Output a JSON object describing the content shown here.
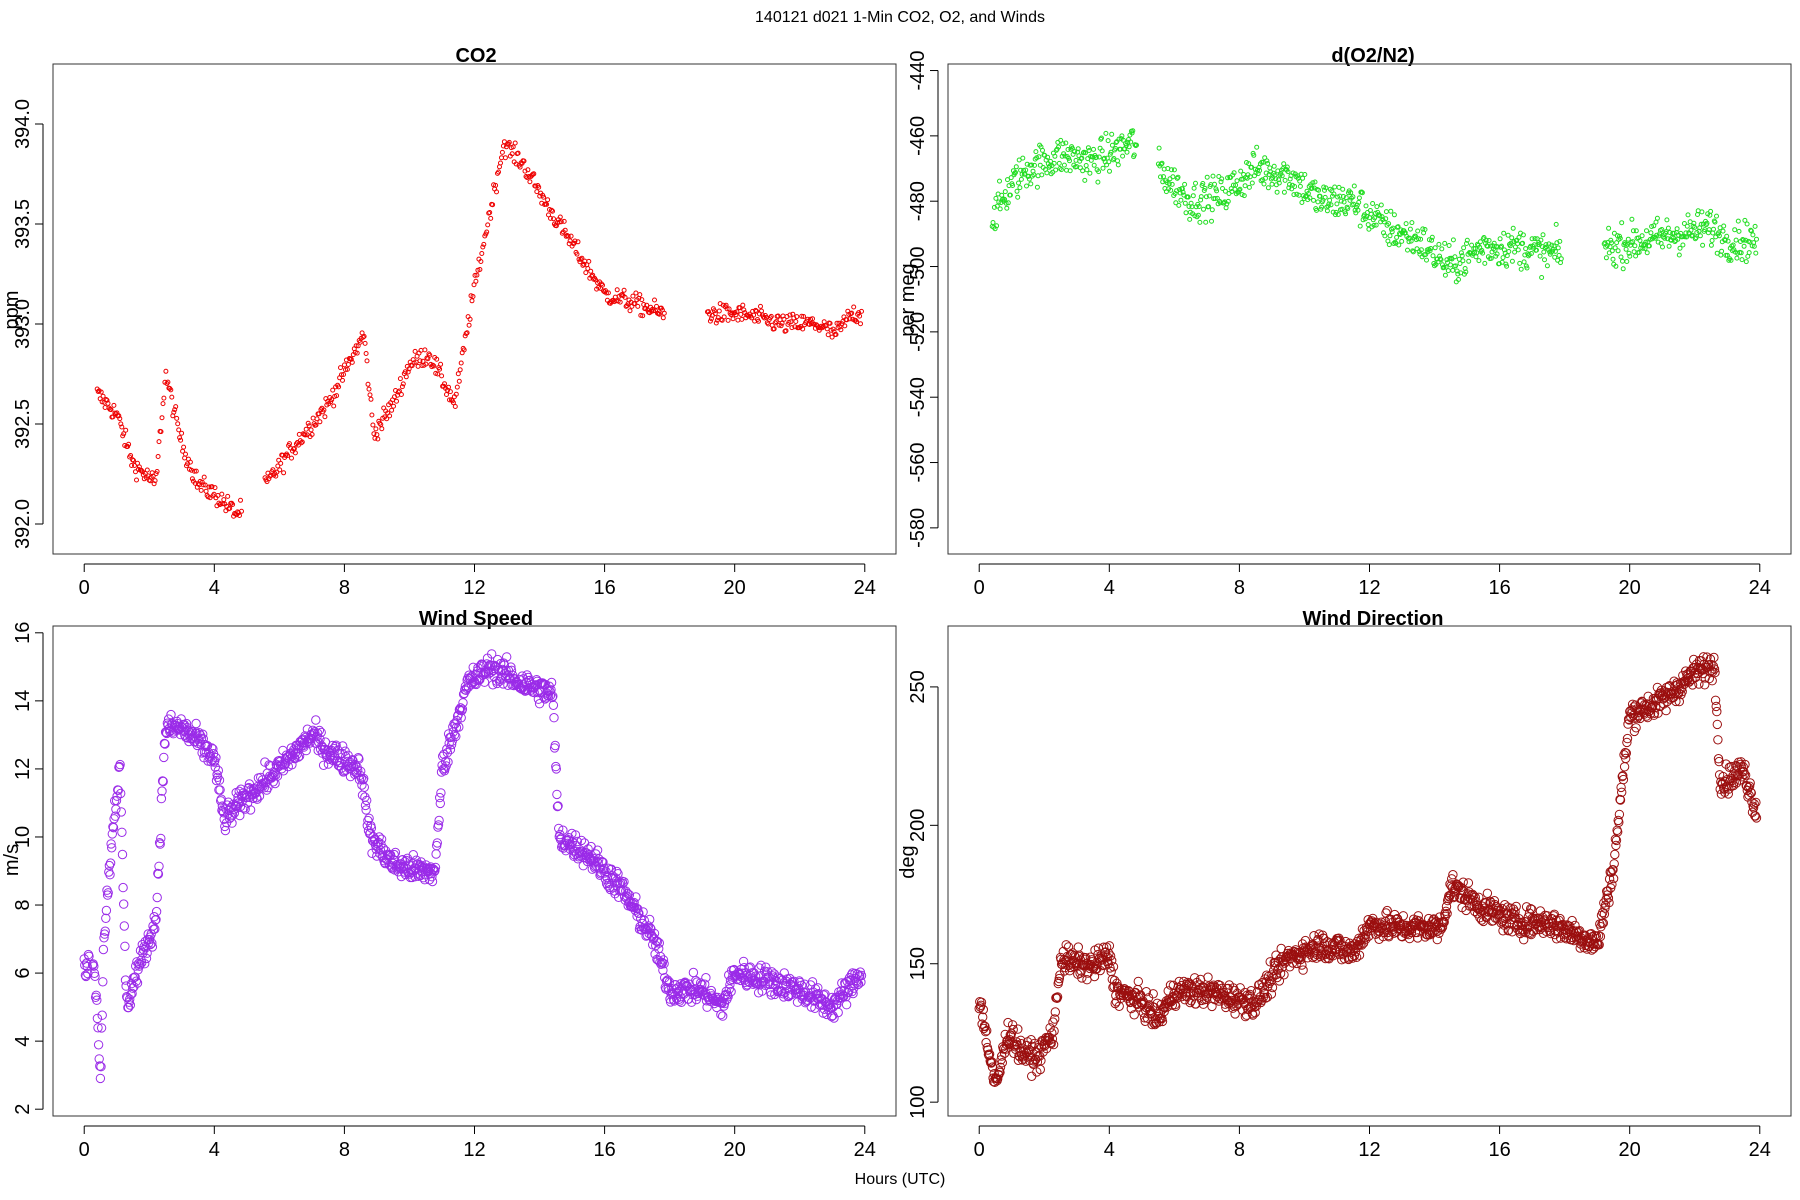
{
  "figure": {
    "suptitle": "140121   d021   1-Min CO2, O2, and Winds",
    "xlabel": "Hours (UTC)"
  },
  "chart_data": [
    {
      "type": "scatter",
      "title": "CO2",
      "ylabel": "ppm",
      "xlabel": "",
      "color": "#ee0000",
      "xlim": [
        -0.96,
        24.96
      ],
      "ylim": [
        391.85,
        394.3
      ],
      "xticks": [
        0,
        4,
        8,
        12,
        16,
        20,
        24
      ],
      "yticks": [
        392.0,
        392.5,
        393.0,
        393.5,
        394.0
      ],
      "ytick_labels": [
        "392.0",
        "392.5",
        "393.0",
        "393.5",
        "394.0"
      ],
      "grid": false,
      "marker": "open-circle",
      "trend": [
        [
          0.4,
          392.65
        ],
        [
          1.0,
          392.55
        ],
        [
          1.5,
          392.3
        ],
        [
          2.2,
          392.2
        ],
        [
          2.5,
          392.75
        ],
        [
          3.0,
          392.4
        ],
        [
          3.5,
          392.2
        ],
        [
          4.0,
          392.15
        ],
        [
          4.7,
          392.05
        ],
        [
          5.6,
          392.2
        ],
        [
          6.5,
          392.4
        ],
        [
          7.5,
          392.6
        ],
        [
          8.6,
          392.95
        ],
        [
          8.9,
          392.45
        ],
        [
          9.5,
          392.6
        ],
        [
          10.0,
          392.8
        ],
        [
          10.6,
          392.85
        ],
        [
          11.4,
          392.6
        ],
        [
          11.9,
          393.1
        ],
        [
          12.4,
          393.5
        ],
        [
          12.9,
          393.9
        ],
        [
          13.5,
          393.8
        ],
        [
          14.2,
          393.6
        ],
        [
          15.0,
          393.4
        ],
        [
          16.0,
          393.15
        ],
        [
          17.0,
          393.1
        ],
        [
          17.8,
          393.05
        ],
        [
          19.2,
          393.05
        ],
        [
          20.2,
          393.05
        ],
        [
          21.5,
          393.0
        ],
        [
          22.5,
          393.0
        ],
        [
          23.1,
          392.95
        ],
        [
          23.6,
          393.05
        ],
        [
          23.9,
          393.05
        ]
      ],
      "gaps": [
        [
          4.85,
          5.55
        ],
        [
          17.85,
          19.15
        ]
      ],
      "spread": 0.05,
      "n_points": 780
    },
    {
      "type": "scatter",
      "title": "d(O2/N2)",
      "ylabel": "per meg",
      "xlabel": "",
      "color": "#22dd22",
      "xlim": [
        -0.96,
        24.96
      ],
      "ylim": [
        -588,
        -438
      ],
      "xticks": [
        0,
        4,
        8,
        12,
        16,
        20,
        24
      ],
      "yticks": [
        -580,
        -560,
        -540,
        -520,
        -500,
        -480,
        -460,
        -440
      ],
      "ytick_labels": [
        "-580",
        "-560",
        "-540",
        "-520",
        "-500",
        "-480",
        "-460",
        "-440"
      ],
      "grid": false,
      "marker": "open-circle",
      "trend": [
        [
          0.4,
          -485
        ],
        [
          1.0,
          -475
        ],
        [
          1.5,
          -470
        ],
        [
          2.5,
          -466
        ],
        [
          3.5,
          -468
        ],
        [
          4.7,
          -462
        ],
        [
          5.5,
          -470
        ],
        [
          6.5,
          -480
        ],
        [
          7.5,
          -478
        ],
        [
          8.5,
          -470
        ],
        [
          9.5,
          -472
        ],
        [
          10.5,
          -480
        ],
        [
          11.5,
          -480
        ],
        [
          12.5,
          -488
        ],
        [
          13.5,
          -492
        ],
        [
          14.5,
          -500
        ],
        [
          15.5,
          -494
        ],
        [
          16.5,
          -494
        ],
        [
          17.5,
          -496
        ],
        [
          19.3,
          -494
        ],
        [
          20.5,
          -492
        ],
        [
          21.5,
          -490
        ],
        [
          22.5,
          -488
        ],
        [
          23.0,
          -492
        ],
        [
          23.9,
          -492
        ]
      ],
      "gaps": [
        [
          4.85,
          5.5
        ],
        [
          17.9,
          19.2
        ]
      ],
      "spread": 6,
      "n_points": 1050
    },
    {
      "type": "scatter",
      "title": "Wind Speed",
      "ylabel": "m/s",
      "xlabel": "",
      "color": "#9a2be8",
      "xlim": [
        -0.96,
        24.96
      ],
      "ylim": [
        1.8,
        16.2
      ],
      "xticks": [
        0,
        4,
        8,
        12,
        16,
        20,
        24
      ],
      "yticks": [
        2,
        4,
        6,
        8,
        10,
        12,
        14,
        16
      ],
      "ytick_labels": [
        "2",
        "4",
        "6",
        "8",
        "10",
        "12",
        "14",
        "16"
      ],
      "grid": false,
      "marker": "open-circle",
      "trend": [
        [
          0.0,
          6.0
        ],
        [
          0.3,
          6.5
        ],
        [
          0.5,
          3.0
        ],
        [
          0.6,
          7.0
        ],
        [
          0.9,
          10.5
        ],
        [
          1.1,
          12.0
        ],
        [
          1.3,
          5.0
        ],
        [
          1.6,
          6.0
        ],
        [
          2.2,
          7.5
        ],
        [
          2.5,
          13.2
        ],
        [
          3.0,
          13.2
        ],
        [
          3.5,
          12.8
        ],
        [
          4.0,
          12.3
        ],
        [
          4.3,
          10.5
        ],
        [
          5.0,
          11.2
        ],
        [
          6.0,
          12.0
        ],
        [
          7.0,
          13.0
        ],
        [
          7.5,
          12.5
        ],
        [
          8.5,
          12.0
        ],
        [
          8.8,
          10.0
        ],
        [
          9.5,
          9.2
        ],
        [
          10.3,
          9.0
        ],
        [
          10.8,
          9.0
        ],
        [
          11.0,
          12.0
        ],
        [
          11.8,
          14.5
        ],
        [
          12.5,
          15.0
        ],
        [
          13.5,
          14.5
        ],
        [
          14.4,
          14.2
        ],
        [
          14.6,
          10.0
        ],
        [
          15.5,
          9.5
        ],
        [
          16.5,
          8.5
        ],
        [
          17.5,
          7.0
        ],
        [
          18.0,
          5.5
        ],
        [
          19.0,
          5.5
        ],
        [
          19.6,
          5.0
        ],
        [
          20.0,
          6.0
        ],
        [
          21.0,
          5.8
        ],
        [
          22.0,
          5.5
        ],
        [
          23.0,
          5.0
        ],
        [
          23.9,
          6.0
        ]
      ],
      "gaps": [
        [
          0.15,
          0.25
        ]
      ],
      "spread": 0.4,
      "n_points": 1300
    },
    {
      "type": "scatter",
      "title": "Wind Direction",
      "ylabel": "deg",
      "xlabel": "",
      "color": "#9b0f0f",
      "xlim": [
        -0.96,
        24.96
      ],
      "ylim": [
        95,
        272
      ],
      "xticks": [
        0,
        4,
        8,
        12,
        16,
        20,
        24
      ],
      "yticks": [
        100,
        150,
        200,
        250
      ],
      "ytick_labels": [
        "100",
        "150",
        "200",
        "250"
      ],
      "grid": false,
      "marker": "open-circle",
      "trend": [
        [
          0.0,
          138
        ],
        [
          0.5,
          105
        ],
        [
          0.9,
          126
        ],
        [
          1.3,
          118
        ],
        [
          1.8,
          116
        ],
        [
          2.3,
          126
        ],
        [
          2.5,
          152
        ],
        [
          3.0,
          150
        ],
        [
          3.5,
          149
        ],
        [
          4.0,
          153
        ],
        [
          4.2,
          140
        ],
        [
          5.0,
          136
        ],
        [
          5.5,
          130
        ],
        [
          6.0,
          140
        ],
        [
          7.0,
          140
        ],
        [
          8.0,
          137
        ],
        [
          8.5,
          136
        ],
        [
          9.0,
          145
        ],
        [
          9.5,
          152
        ],
        [
          10.5,
          157
        ],
        [
          11.5,
          154
        ],
        [
          12.0,
          164
        ],
        [
          13.0,
          163
        ],
        [
          14.2,
          163
        ],
        [
          14.5,
          178
        ],
        [
          15.5,
          170
        ],
        [
          16.5,
          165
        ],
        [
          17.5,
          165
        ],
        [
          18.5,
          160
        ],
        [
          19.0,
          157
        ],
        [
          19.5,
          185
        ],
        [
          20.0,
          240
        ],
        [
          21.0,
          245
        ],
        [
          22.0,
          255
        ],
        [
          22.6,
          258
        ],
        [
          22.8,
          215
        ],
        [
          23.5,
          220
        ],
        [
          23.9,
          205
        ]
      ],
      "gaps": [],
      "spread": 5,
      "n_points": 1350
    }
  ]
}
